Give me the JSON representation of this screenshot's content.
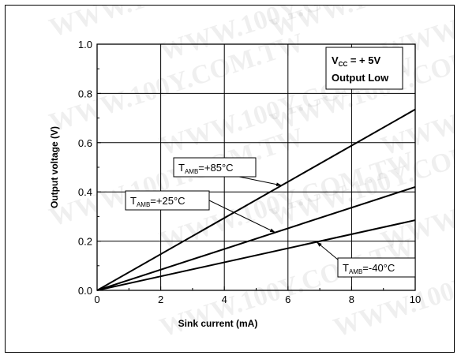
{
  "chart_data": {
    "type": "line",
    "xlabel": "Sink current (mA)",
    "ylabel": "Output voltage (V)",
    "xlim": [
      0,
      10
    ],
    "ylim": [
      0.0,
      1.0
    ],
    "xticks": [
      "0",
      "2",
      "4",
      "6",
      "8",
      "10"
    ],
    "yticks": [
      "0.0",
      "0.2",
      "0.4",
      "0.6",
      "0.8",
      "1.0"
    ],
    "grid": true,
    "series": [
      {
        "name": "T_AMB=+85°C",
        "main": "T",
        "sub": "AMB",
        "rest": "=+85°C",
        "x": [
          0,
          10
        ],
        "y": [
          0.0,
          0.735
        ]
      },
      {
        "name": "T_AMB=+25°C",
        "main": "T",
        "sub": "AMB",
        "rest": "=+25°C",
        "x": [
          0,
          10
        ],
        "y": [
          0.0,
          0.42
        ]
      },
      {
        "name": "T_AMB=-40°C",
        "main": "T",
        "sub": "AMB",
        "rest": "=-40°C",
        "x": [
          0,
          10
        ],
        "y": [
          0.0,
          0.285
        ]
      }
    ],
    "conditions": {
      "vcc_main": "V",
      "vcc_sub": "CC",
      "vcc_rest": " = + 5V",
      "line2": "Output Low"
    }
  },
  "watermark": "WWW.100Y.COM.TW"
}
